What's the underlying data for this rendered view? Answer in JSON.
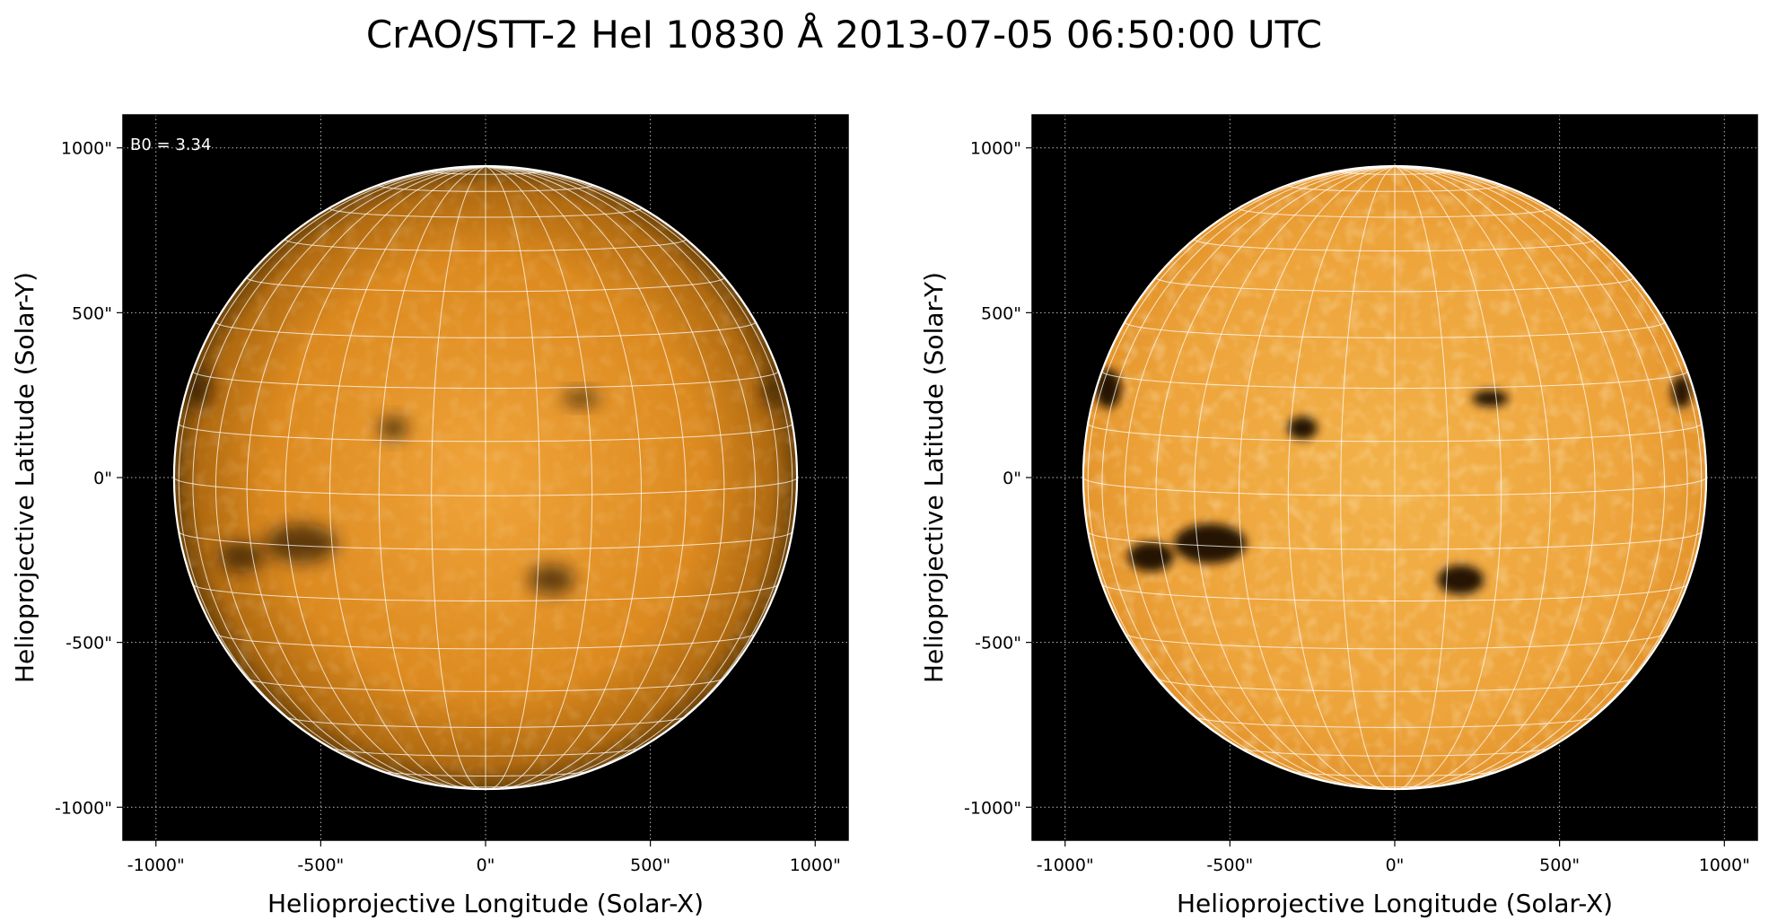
{
  "title": "CrAO/STT-2 HeI 10830 Å 2013-07-05 06:50:00 UTC",
  "colors": {
    "background": "#000000",
    "disk_center": "#f2a53c",
    "disk_mid": "#dd8a1e",
    "disk_limb": "#7a4a0a",
    "grid": "#ffffff",
    "dark_feature": "#1a0d02"
  },
  "panels": [
    {
      "id": "left",
      "annotation": "B0 = 3.34",
      "xlabel": "Helioprojective Longitude (Solar-X)",
      "ylabel": "Helioprojective Latitude (Solar-Y)",
      "x_ticks": [
        "-1000\"",
        "-500\"",
        "0\"",
        "500\"",
        "1000\""
      ],
      "y_ticks": [
        "1000\"",
        "500\"",
        "0\"",
        "-500\"",
        "-1000\""
      ],
      "contrast": "low"
    },
    {
      "id": "right",
      "annotation": "",
      "xlabel": "Helioprojective Longitude (Solar-X)",
      "ylabel": "Helioprojective Latitude (Solar-Y)",
      "x_ticks": [
        "-1000\"",
        "-500\"",
        "0\"",
        "500\"",
        "1000\""
      ],
      "y_ticks": [
        "1000\"",
        "500\"",
        "0\"",
        "-500\"",
        "-1000\""
      ],
      "contrast": "high"
    }
  ],
  "chart_data": {
    "type": "image",
    "xlim": [
      -1100,
      1100
    ],
    "ylim": [
      -1100,
      1100
    ],
    "tick_values": [
      -1000,
      -500,
      0,
      500,
      1000
    ],
    "solar_radius_arcsec": 945,
    "B0": 3.34,
    "graticule_step_deg": 10,
    "dark_features": [
      {
        "x": -560,
        "y": -200,
        "rx": 110,
        "ry": 60
      },
      {
        "x": -740,
        "y": -240,
        "rx": 70,
        "ry": 45
      },
      {
        "x": 200,
        "y": -310,
        "rx": 70,
        "ry": 45
      },
      {
        "x": 290,
        "y": 240,
        "rx": 55,
        "ry": 25
      },
      {
        "x": -280,
        "y": 150,
        "rx": 45,
        "ry": 35
      },
      {
        "x": -870,
        "y": 270,
        "rx": 40,
        "ry": 60
      },
      {
        "x": 870,
        "y": 260,
        "rx": 30,
        "ry": 50
      }
    ]
  }
}
